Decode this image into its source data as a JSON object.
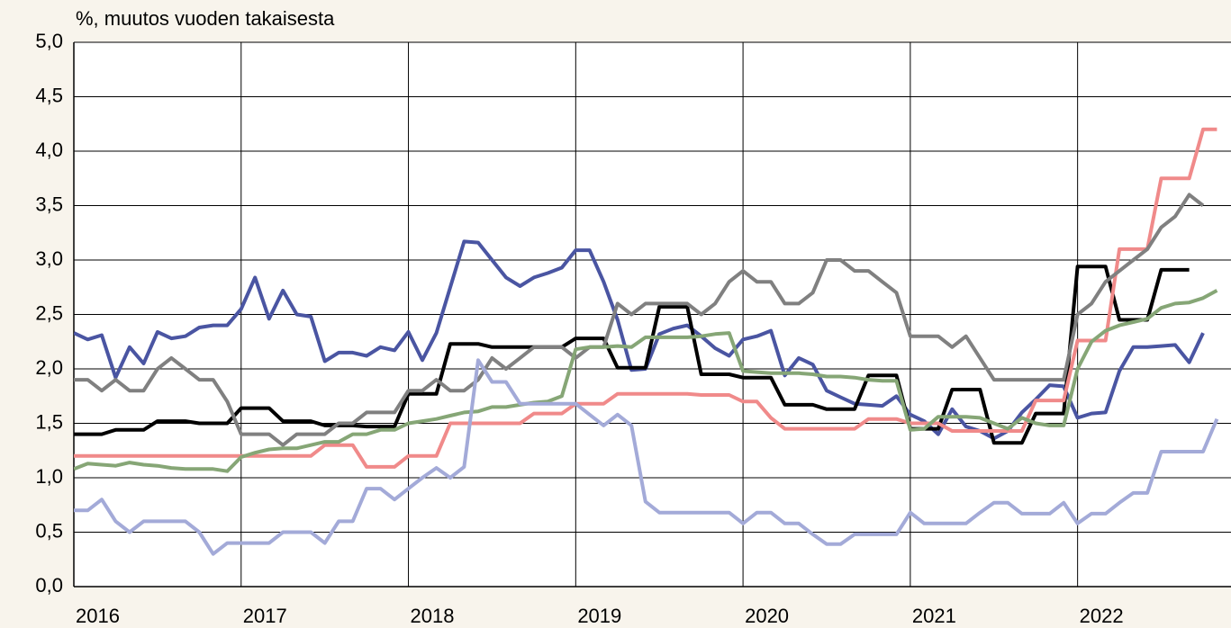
{
  "chart_data": {
    "type": "line",
    "ylabel": "%, muutos vuoden takaisesta",
    "x": [
      2016,
      2016.083,
      2016.167,
      2016.25,
      2016.333,
      2016.417,
      2016.5,
      2016.583,
      2016.667,
      2016.75,
      2016.833,
      2016.917,
      2017,
      2017.083,
      2017.167,
      2017.25,
      2017.333,
      2017.417,
      2017.5,
      2017.583,
      2017.667,
      2017.75,
      2017.833,
      2017.917,
      2018,
      2018.083,
      2018.167,
      2018.25,
      2018.333,
      2018.417,
      2018.5,
      2018.583,
      2018.667,
      2018.75,
      2018.833,
      2018.917,
      2019,
      2019.083,
      2019.167,
      2019.25,
      2019.333,
      2019.417,
      2019.5,
      2019.583,
      2019.667,
      2019.75,
      2019.833,
      2019.917,
      2020,
      2020.083,
      2020.167,
      2020.25,
      2020.333,
      2020.417,
      2020.5,
      2020.583,
      2020.667,
      2020.75,
      2020.833,
      2020.917,
      2021,
      2021.083,
      2021.167,
      2021.25,
      2021.333,
      2021.417,
      2021.5,
      2021.583,
      2021.667,
      2021.75,
      2021.833,
      2021.917,
      2022,
      2022.083,
      2022.167,
      2022.25,
      2022.333,
      2022.417,
      2022.5,
      2022.583,
      2022.667,
      2022.75,
      2022.833
    ],
    "xlim": [
      2016,
      2022.917
    ],
    "xticks": [
      2016,
      2017,
      2018,
      2019,
      2020,
      2021,
      2022
    ],
    "ylim": [
      0,
      5
    ],
    "yticks": [
      {
        "value": 0,
        "label": "0,0"
      },
      {
        "value": 0.5,
        "label": "0,5"
      },
      {
        "value": 1,
        "label": "1,0"
      },
      {
        "value": 1.5,
        "label": "1,5"
      },
      {
        "value": 2,
        "label": "2,0"
      },
      {
        "value": 2.5,
        "label": "2,5"
      },
      {
        "value": 3,
        "label": "3,0"
      },
      {
        "value": 3.5,
        "label": "3,5"
      },
      {
        "value": 4,
        "label": "4,0"
      },
      {
        "value": 4.5,
        "label": "4,5"
      },
      {
        "value": 5,
        "label": "5,0"
      }
    ],
    "grid": true,
    "series": [
      {
        "color": "#4a55a2",
        "values": [
          2.33,
          2.27,
          2.31,
          1.92,
          2.2,
          2.05,
          2.34,
          2.28,
          2.3,
          2.38,
          2.4,
          2.4,
          2.55,
          2.84,
          2.46,
          2.72,
          2.5,
          2.48,
          2.07,
          2.15,
          2.15,
          2.12,
          2.2,
          2.17,
          2.34,
          2.08,
          2.33,
          2.75,
          3.17,
          3.16,
          3.0,
          2.84,
          2.76,
          2.84,
          2.88,
          2.93,
          3.09,
          3.09,
          2.8,
          2.45,
          1.99,
          2.0,
          2.32,
          2.37,
          2.4,
          2.3,
          2.19,
          2.12,
          2.27,
          2.3,
          2.35,
          1.94,
          2.1,
          2.04,
          1.8,
          1.74,
          1.68,
          1.67,
          1.66,
          1.75,
          1.58,
          1.52,
          1.4,
          1.63,
          1.47,
          1.43,
          1.36,
          1.43,
          1.6,
          1.72,
          1.85,
          1.84,
          1.55,
          1.59,
          1.6,
          1.98,
          2.2,
          2.2,
          2.21,
          2.22,
          2.06,
          2.33,
          null
        ]
      },
      {
        "color": "#000000",
        "values": [
          1.4,
          1.4,
          1.4,
          1.44,
          1.44,
          1.44,
          1.52,
          1.52,
          1.52,
          1.5,
          1.5,
          1.5,
          1.64,
          1.64,
          1.64,
          1.52,
          1.52,
          1.52,
          1.48,
          1.48,
          1.48,
          1.47,
          1.47,
          1.47,
          1.77,
          1.77,
          1.77,
          2.23,
          2.23,
          2.23,
          2.2,
          2.2,
          2.2,
          2.2,
          2.2,
          2.2,
          2.28,
          2.28,
          2.28,
          2.01,
          2.01,
          2.01,
          2.57,
          2.57,
          2.57,
          1.95,
          1.95,
          1.95,
          1.92,
          1.92,
          1.92,
          1.67,
          1.67,
          1.67,
          1.63,
          1.63,
          1.63,
          1.94,
          1.94,
          1.94,
          1.45,
          1.45,
          1.45,
          1.81,
          1.81,
          1.81,
          1.32,
          1.32,
          1.32,
          1.59,
          1.59,
          1.59,
          2.94,
          2.94,
          2.94,
          2.45,
          2.45,
          2.45,
          2.91,
          2.91,
          2.91,
          null,
          null
        ]
      },
      {
        "color": "#f08a8a",
        "values": [
          1.2,
          1.2,
          1.2,
          1.2,
          1.2,
          1.2,
          1.2,
          1.2,
          1.2,
          1.2,
          1.2,
          1.2,
          1.2,
          1.2,
          1.2,
          1.2,
          1.2,
          1.2,
          1.3,
          1.3,
          1.3,
          1.1,
          1.1,
          1.1,
          1.2,
          1.2,
          1.2,
          1.5,
          1.5,
          1.5,
          1.5,
          1.5,
          1.5,
          1.59,
          1.59,
          1.59,
          1.68,
          1.68,
          1.68,
          1.77,
          1.77,
          1.77,
          1.77,
          1.77,
          1.77,
          1.76,
          1.76,
          1.76,
          1.7,
          1.7,
          1.55,
          1.45,
          1.45,
          1.45,
          1.45,
          1.45,
          1.45,
          1.54,
          1.54,
          1.54,
          1.5,
          1.5,
          1.5,
          1.43,
          1.43,
          1.43,
          1.43,
          1.43,
          1.43,
          1.71,
          1.71,
          1.71,
          2.26,
          2.26,
          2.26,
          3.1,
          3.1,
          3.1,
          3.75,
          3.75,
          3.75,
          4.2,
          4.2
        ]
      },
      {
        "color": "#808080",
        "values": [
          1.9,
          1.9,
          1.8,
          1.9,
          1.8,
          1.8,
          2.0,
          2.1,
          2.0,
          1.9,
          1.9,
          1.7,
          1.4,
          1.4,
          1.4,
          1.3,
          1.4,
          1.4,
          1.4,
          1.5,
          1.5,
          1.6,
          1.6,
          1.6,
          1.8,
          1.8,
          1.9,
          1.8,
          1.8,
          1.9,
          2.1,
          2.0,
          2.1,
          2.2,
          2.2,
          2.2,
          2.1,
          2.2,
          2.2,
          2.6,
          2.5,
          2.6,
          2.6,
          2.6,
          2.6,
          2.5,
          2.6,
          2.8,
          2.9,
          2.8,
          2.8,
          2.6,
          2.6,
          2.7,
          3.0,
          3.0,
          2.9,
          2.9,
          2.8,
          2.7,
          2.3,
          2.3,
          2.3,
          2.2,
          2.3,
          2.1,
          1.9,
          1.9,
          1.9,
          1.9,
          1.9,
          1.9,
          2.5,
          2.6,
          2.8,
          2.9,
          3.0,
          3.1,
          3.3,
          3.4,
          3.6,
          3.5,
          null
        ]
      },
      {
        "color": "#86a676",
        "values": [
          1.08,
          1.13,
          1.12,
          1.11,
          1.14,
          1.12,
          1.11,
          1.09,
          1.08,
          1.08,
          1.08,
          1.06,
          1.19,
          1.23,
          1.26,
          1.27,
          1.27,
          1.3,
          1.33,
          1.33,
          1.4,
          1.4,
          1.44,
          1.44,
          1.5,
          1.52,
          1.54,
          1.57,
          1.6,
          1.61,
          1.65,
          1.65,
          1.67,
          1.69,
          1.7,
          1.75,
          2.18,
          2.2,
          2.2,
          2.21,
          2.2,
          2.29,
          2.29,
          2.29,
          2.29,
          2.3,
          2.32,
          2.33,
          1.98,
          1.97,
          1.96,
          1.96,
          1.96,
          1.95,
          1.93,
          1.93,
          1.92,
          1.9,
          1.89,
          1.89,
          1.44,
          1.45,
          1.56,
          1.56,
          1.56,
          1.55,
          1.5,
          1.45,
          1.55,
          1.5,
          1.48,
          1.48,
          2.0,
          2.25,
          2.35,
          2.4,
          2.43,
          2.46,
          2.56,
          2.6,
          2.61,
          2.65,
          2.72
        ]
      },
      {
        "color": "#a3aad8",
        "values": [
          0.7,
          0.7,
          0.8,
          0.6,
          0.5,
          0.6,
          0.6,
          0.6,
          0.6,
          0.5,
          0.3,
          0.4,
          0.4,
          0.4,
          0.4,
          0.5,
          0.5,
          0.5,
          0.4,
          0.6,
          0.6,
          0.9,
          0.9,
          0.8,
          0.9,
          1.0,
          1.09,
          1.0,
          1.1,
          2.08,
          1.88,
          1.88,
          1.68,
          1.68,
          1.68,
          1.68,
          1.68,
          1.58,
          1.48,
          1.58,
          1.48,
          0.78,
          0.68,
          0.68,
          0.68,
          0.68,
          0.68,
          0.68,
          0.58,
          0.68,
          0.68,
          0.58,
          0.58,
          0.48,
          0.39,
          0.39,
          0.48,
          0.48,
          0.48,
          0.48,
          0.68,
          0.58,
          0.58,
          0.58,
          0.58,
          0.68,
          0.77,
          0.77,
          0.67,
          0.67,
          0.67,
          0.77,
          0.58,
          0.67,
          0.67,
          0.77,
          0.86,
          0.86,
          1.24,
          1.24,
          1.24,
          1.24,
          1.54
        ]
      }
    ]
  }
}
